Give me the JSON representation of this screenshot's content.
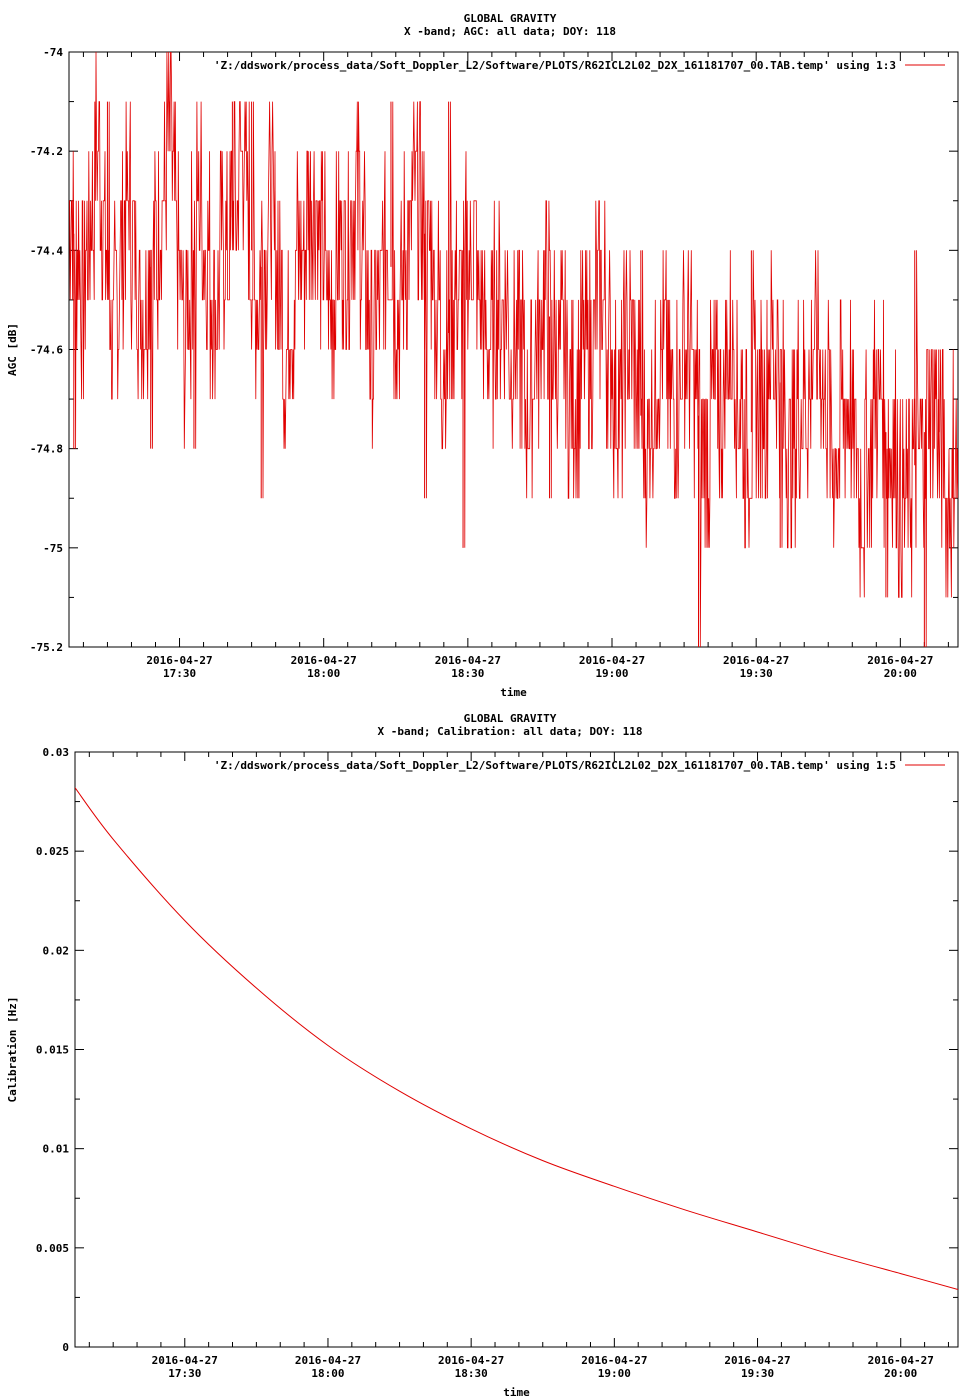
{
  "chart_data": [
    {
      "type": "line",
      "title": "GLOBAL GRAVITY",
      "subtitle": "X -band; AGC: all data; DOY: 118",
      "xlabel": "time",
      "ylabel": "AGC [dB]",
      "ylim": [
        -75.2,
        -74
      ],
      "yticks": [
        -74,
        -74.2,
        -74.4,
        -74.6,
        -74.8,
        -75,
        -75.2
      ],
      "ytick_labels": [
        "-74",
        "-74.2",
        "-74.4",
        "-74.6",
        "-74.8",
        "-75",
        "-75.2"
      ],
      "xlim": [
        "17:07",
        "20:12"
      ],
      "xticks": [
        {
          "x": "17:30",
          "date": "2016-04-27",
          "time": "17:30"
        },
        {
          "x": "18:00",
          "date": "2016-04-27",
          "time": "18:00"
        },
        {
          "x": "18:30",
          "date": "2016-04-27",
          "time": "18:30"
        },
        {
          "x": "19:00",
          "date": "2016-04-27",
          "time": "19:00"
        },
        {
          "x": "19:30",
          "date": "2016-04-27",
          "time": "19:30"
        },
        {
          "x": "20:00",
          "date": "2016-04-27",
          "time": "20:00"
        }
      ],
      "legend": "'Z:/ddswork/process_data/Soft_Doppler_L2/Software/PLOTS/R62ICL2L02_D2X_161181707_00.TAB.temp' using 1:3",
      "legend_position": "top-right",
      "grid": false,
      "series_color": "#e00000",
      "series": [
        {
          "name": "'Z:/ddswork/process_data/Soft_Doppler_L2/Software/PLOTS/R62ICL2L02_D2X_161181707_00.TAB.temp' using 1:3",
          "x": [
            "17:07",
            "17:10",
            "17:13",
            "17:16",
            "17:19",
            "17:22",
            "17:25",
            "17:28",
            "17:31",
            "17:34",
            "17:37",
            "17:40",
            "17:43",
            "17:46",
            "17:49",
            "17:52",
            "17:55",
            "17:58",
            "18:01",
            "18:04",
            "18:07",
            "18:10",
            "18:13",
            "18:16",
            "18:19",
            "18:22",
            "18:25",
            "18:28",
            "18:31",
            "18:34",
            "18:37",
            "18:40",
            "18:43",
            "18:46",
            "18:49",
            "18:52",
            "18:55",
            "18:58",
            "19:01",
            "19:04",
            "19:07",
            "19:10",
            "19:13",
            "19:16",
            "19:19",
            "19:22",
            "19:25",
            "19:28",
            "19:31",
            "19:34",
            "19:37",
            "19:40",
            "19:43",
            "19:46",
            "19:49",
            "19:52",
            "19:55",
            "19:58",
            "20:01",
            "20:04",
            "20:07",
            "20:10",
            "20:12"
          ],
          "y": [
            -74.3,
            -74.5,
            -74.2,
            -74.6,
            -74.3,
            -74.5,
            -74.4,
            -74.2,
            -74.6,
            -74.3,
            -74.5,
            -74.4,
            -74.2,
            -74.5,
            -74.3,
            -74.6,
            -74.4,
            -74.3,
            -74.5,
            -74.4,
            -74.3,
            -74.6,
            -74.4,
            -74.5,
            -74.3,
            -74.4,
            -74.6,
            -74.5,
            -74.4,
            -74.6,
            -74.5,
            -74.6,
            -74.7,
            -74.5,
            -74.6,
            -74.7,
            -74.6,
            -74.5,
            -74.7,
            -74.6,
            -74.8,
            -74.6,
            -74.7,
            -74.6,
            -74.8,
            -74.7,
            -74.6,
            -74.8,
            -74.7,
            -74.6,
            -74.8,
            -74.7,
            -74.6,
            -74.8,
            -74.7,
            -74.9,
            -74.7,
            -74.8,
            -74.9,
            -74.8,
            -74.7,
            -74.9,
            -74.8
          ],
          "spikes": [
            {
              "x": "17:08",
              "y": -74.8
            },
            {
              "x": "17:15",
              "y": -74.1
            },
            {
              "x": "17:24",
              "y": -74.8
            },
            {
              "x": "17:28",
              "y": -74.1
            },
            {
              "x": "17:33",
              "y": -74.8
            },
            {
              "x": "17:41",
              "y": -74.1
            },
            {
              "x": "17:45",
              "y": -74.1
            },
            {
              "x": "17:47",
              "y": -74.9
            },
            {
              "x": "18:14",
              "y": -74.1
            },
            {
              "x": "18:21",
              "y": -74.9
            },
            {
              "x": "18:26",
              "y": -74.1
            },
            {
              "x": "18:29",
              "y": -75.0
            },
            {
              "x": "18:47",
              "y": -74.9
            },
            {
              "x": "19:06",
              "y": -74.4
            },
            {
              "x": "19:18",
              "y": -75.2
            },
            {
              "x": "19:29",
              "y": -74.4
            },
            {
              "x": "19:35",
              "y": -75.0
            },
            {
              "x": "19:57",
              "y": -75.1
            },
            {
              "x": "20:03",
              "y": -74.4
            },
            {
              "x": "20:05",
              "y": -75.2
            },
            {
              "x": "20:08",
              "y": -74.6
            }
          ]
        }
      ]
    },
    {
      "type": "line",
      "title": "GLOBAL GRAVITY",
      "subtitle": "X -band; Calibration: all data; DOY: 118",
      "xlabel": "time",
      "ylabel": "Calibration [Hz]",
      "ylim": [
        0,
        0.03
      ],
      "yticks": [
        0,
        0.005,
        0.01,
        0.015,
        0.02,
        0.025,
        0.03
      ],
      "ytick_labels": [
        "0",
        "0.005",
        "0.01",
        "0.015",
        "0.02",
        "0.025",
        "0.03"
      ],
      "xlim": [
        "17:07",
        "20:12"
      ],
      "xticks": [
        {
          "x": "17:30",
          "date": "2016-04-27",
          "time": "17:30"
        },
        {
          "x": "18:00",
          "date": "2016-04-27",
          "time": "18:00"
        },
        {
          "x": "18:30",
          "date": "2016-04-27",
          "time": "18:30"
        },
        {
          "x": "19:00",
          "date": "2016-04-27",
          "time": "19:00"
        },
        {
          "x": "19:30",
          "date": "2016-04-27",
          "time": "19:30"
        },
        {
          "x": "20:00",
          "date": "2016-04-27",
          "time": "20:00"
        }
      ],
      "legend": "'Z:/ddswork/process_data/Soft_Doppler_L2/Software/PLOTS/R62ICL2L02_D2X_161181707_00.TAB.temp' using 1:5",
      "legend_position": "top-right",
      "grid": false,
      "series_color": "#e00000",
      "series": [
        {
          "name": "'Z:/ddswork/process_data/Soft_Doppler_L2/Software/PLOTS/R62ICL2L02_D2X_161181707_00.TAB.temp' using 1:5",
          "x": [
            "17:07",
            "17:15",
            "17:30",
            "17:45",
            "18:00",
            "18:15",
            "18:30",
            "18:45",
            "19:00",
            "19:15",
            "19:30",
            "19:45",
            "20:00",
            "20:12"
          ],
          "y": [
            0.0282,
            0.0256,
            0.0215,
            0.0181,
            0.0152,
            0.0129,
            0.011,
            0.0094,
            0.0081,
            0.0069,
            0.0058,
            0.0047,
            0.0037,
            0.0029
          ]
        }
      ]
    }
  ]
}
